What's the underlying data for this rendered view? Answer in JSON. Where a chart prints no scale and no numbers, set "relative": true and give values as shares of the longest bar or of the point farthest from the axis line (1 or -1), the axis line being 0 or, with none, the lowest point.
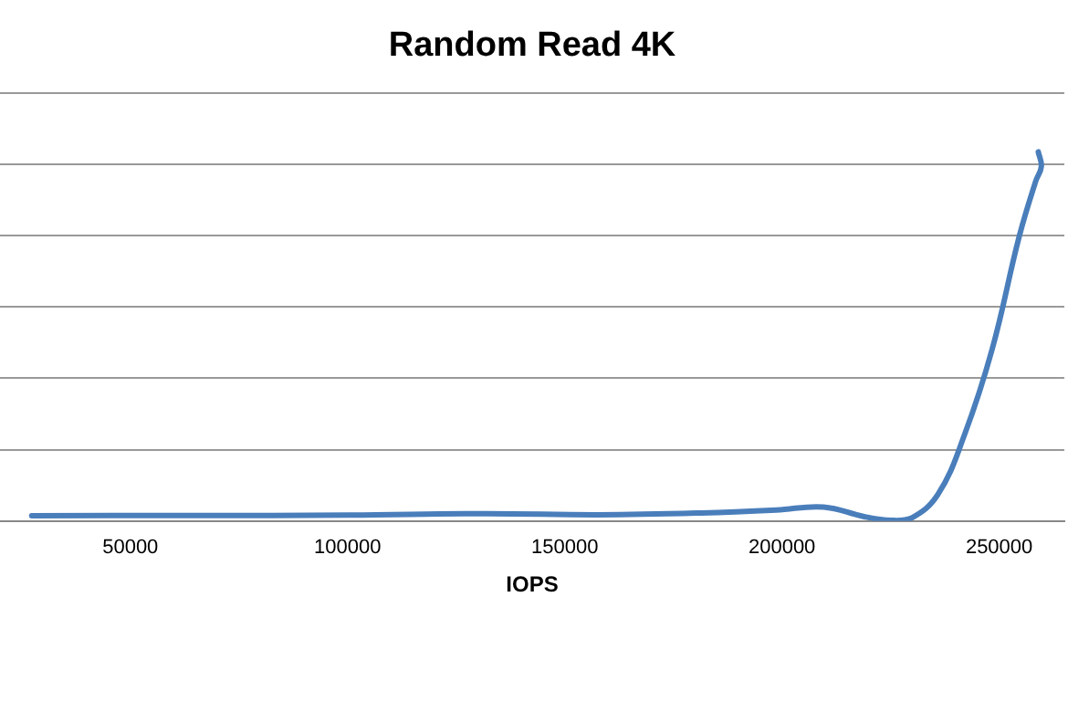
{
  "chart_data": {
    "type": "line",
    "title": "Random Read 4K",
    "xlabel": "IOPS",
    "relative": true,
    "grid": "y",
    "marker": "none",
    "line_style": "solid",
    "xlim": [
      20000,
      265000
    ],
    "xticks": [
      50000,
      100000,
      150000,
      200000,
      250000
    ],
    "series": [
      {
        "color": "#4a7ebb",
        "x": [
          27300,
          64700,
          100400,
          131500,
          158000,
          181500,
          198700,
          209600,
          218900,
          225200,
          229800,
          235900,
          242000,
          248400,
          254600,
          258400,
          259700,
          259000
        ],
        "values": [
          0.0145,
          0.015,
          0.016,
          0.02,
          0.017,
          0.022,
          0.03,
          0.038,
          0.012,
          0.002,
          0.008,
          0.072,
          0.233,
          0.466,
          0.77,
          0.92,
          0.96,
          1.0
        ]
      }
    ]
  }
}
